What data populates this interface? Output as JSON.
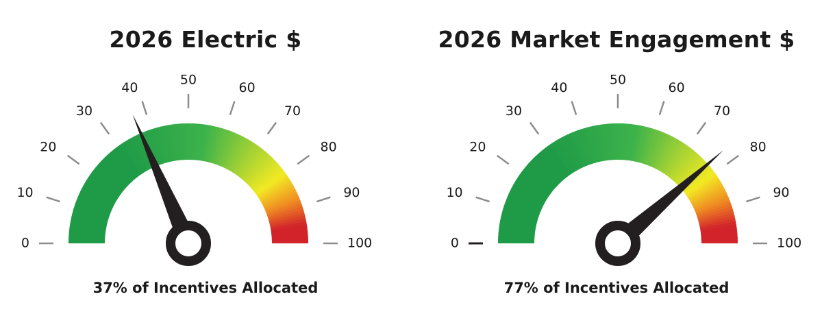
{
  "chart_data": [
    {
      "type": "gauge",
      "title": "2026 Electric $",
      "value": 37,
      "range": [
        0,
        100
      ],
      "ticks": [
        "0",
        "10",
        "20",
        "30",
        "40",
        "50",
        "60",
        "70",
        "80",
        "90",
        "100"
      ],
      "caption": "37% of Incentives Allocated",
      "colors": {
        "green": "#1f9b48",
        "mid_green": "#3db34a",
        "yellow": "#f2ea23",
        "orange": "#ef8a22",
        "red": "#d2232a",
        "needle": "#231f20",
        "tick": "#8c8c8c"
      }
    },
    {
      "type": "gauge",
      "title": "2026 Market Engagement $",
      "value": 77,
      "range": [
        0,
        100
      ],
      "ticks": [
        "0",
        "10",
        "20",
        "30",
        "40",
        "50",
        "60",
        "70",
        "80",
        "90",
        "100"
      ],
      "caption": "77% of Incentives Allocated",
      "colors": {
        "green": "#1f9b48",
        "mid_green": "#3db34a",
        "yellow": "#f2ea23",
        "orange": "#ef8a22",
        "red": "#d2232a",
        "needle": "#231f20",
        "tick": "#8c8c8c"
      }
    }
  ]
}
